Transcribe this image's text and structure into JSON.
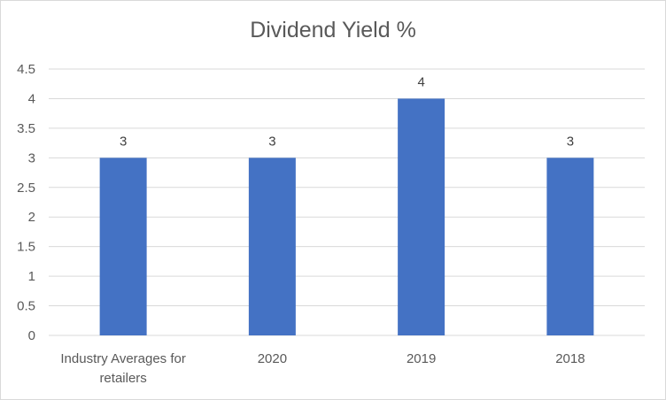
{
  "chart_data": {
    "type": "bar",
    "title": "Dividend Yield %",
    "categories": [
      "Industry Averages for retailers",
      "2020",
      "2019",
      "2018"
    ],
    "category_lines": [
      [
        "Industry Averages for",
        "retailers"
      ],
      [
        "2020"
      ],
      [
        "2019"
      ],
      [
        "2018"
      ]
    ],
    "values": [
      3,
      3,
      4,
      3
    ],
    "data_labels": [
      "3",
      "3",
      "4",
      "3"
    ],
    "ylim": [
      0,
      4.5
    ],
    "yticks": [
      0,
      0.5,
      1,
      1.5,
      2,
      2.5,
      3,
      3.5,
      4,
      4.5
    ],
    "ytick_labels": [
      "0",
      "0.5",
      "1",
      "1.5",
      "2",
      "2.5",
      "3",
      "3.5",
      "4",
      "4.5"
    ],
    "xlabel": "",
    "ylabel": "",
    "grid": true,
    "bar_color": "#4472c4",
    "grid_color": "#d9d9d9",
    "text_color": "#595959"
  }
}
